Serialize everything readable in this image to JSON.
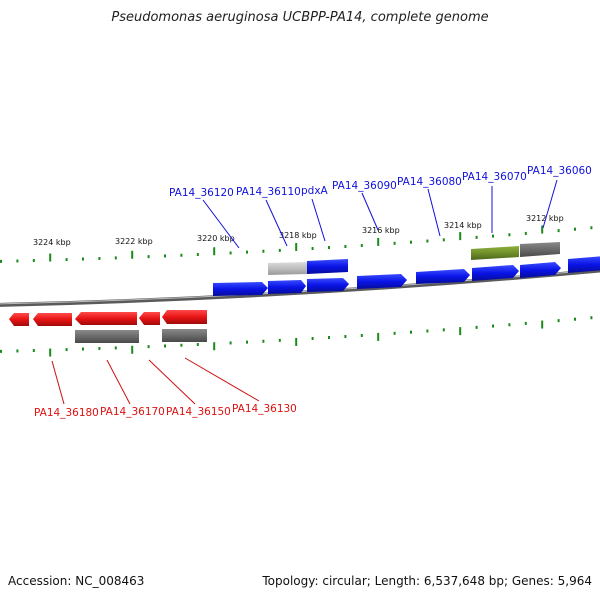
{
  "title": "Pseudomonas aeruginosa UCBPP-PA14, complete genome",
  "footer": {
    "accession": "Accession: NC_008463",
    "summary": "Topology: circular; Length: 6,537,648 bp; Genes: 5,964"
  },
  "colors": {
    "forward_gene": "#0a14e6",
    "reverse_gene": "#e61414",
    "tick": "#1a8a1a",
    "backbone": "#6e6e6e",
    "cds_dark": "#6a6a6a",
    "cds_light": "#bdbdbd",
    "cds_green": "#6f8f2a"
  },
  "scale_labels": [
    "3224 kbp",
    "3222 kbp",
    "3220 kbp",
    "3218 kbp",
    "3216 kbp",
    "3214 kbp",
    "3212 kbp"
  ],
  "forward_gene_labels": [
    "PA14_36120",
    "PA14_36110",
    "pdxA",
    "PA14_36090",
    "PA14_36080",
    "PA14_36070",
    "PA14_36060"
  ],
  "reverse_gene_labels": [
    "PA14_36180",
    "PA14_36170",
    "PA14_36150",
    "PA14_36130"
  ]
}
